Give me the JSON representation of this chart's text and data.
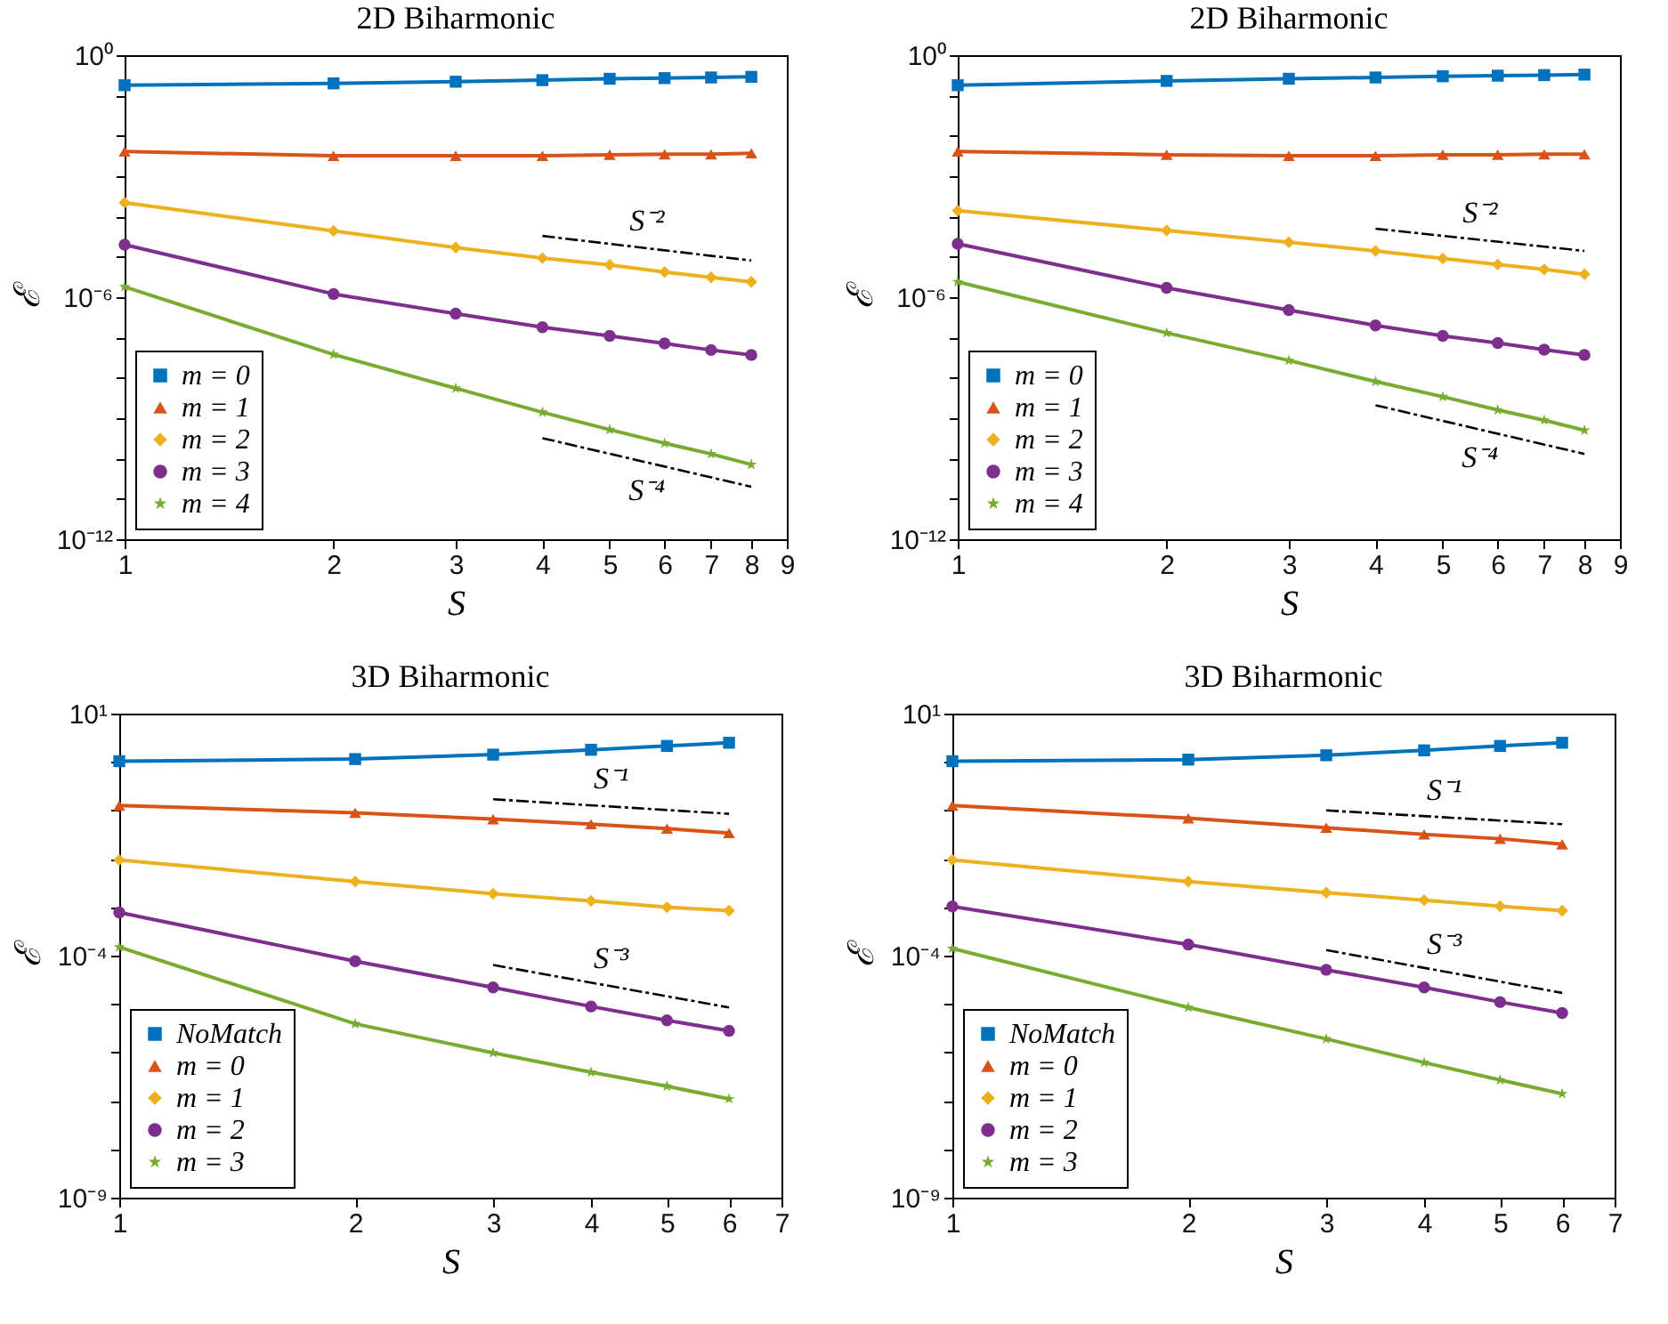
{
  "chart_data": [
    {
      "type": "line",
      "title": "2D Biharmonic",
      "xlabel": "S",
      "ylabel": "ℰ",
      "log": "xy",
      "legend": "bottom left",
      "x": [
        1,
        2,
        3,
        4,
        5,
        6,
        7,
        8
      ],
      "xlim": [
        1,
        9
      ],
      "xticks": [
        1,
        2,
        3,
        4,
        5,
        6,
        7,
        8,
        9
      ],
      "ylim": [
        1e-12,
        1
      ],
      "yticks": [
        {
          "value": 1e-12,
          "label": "10⁻¹²"
        },
        {
          "value": 1e-11,
          "label": null
        },
        {
          "value": 1e-10,
          "label": null
        },
        {
          "value": 1e-09,
          "label": null
        },
        {
          "value": 1e-08,
          "label": null
        },
        {
          "value": 1e-07,
          "label": null
        },
        {
          "value": 1e-06,
          "label": "10⁻⁶"
        },
        {
          "value": 1e-05,
          "label": null
        },
        {
          "value": 0.0001,
          "label": null
        },
        {
          "value": 0.001,
          "label": null
        },
        {
          "value": 0.01,
          "label": null
        },
        {
          "value": 0.1,
          "label": null
        },
        {
          "value": 1,
          "label": "10⁰"
        }
      ],
      "series": [
        {
          "name": "m = 0",
          "color": "#0072bd",
          "marker": "square",
          "values": [
            0.18,
            0.2,
            0.22,
            0.24,
            0.26,
            0.27,
            0.28,
            0.29
          ]
        },
        {
          "name": "m = 1",
          "color": "#d95319",
          "marker": "triangle",
          "values": [
            0.0041,
            0.0032,
            0.0032,
            0.0032,
            0.0034,
            0.0035,
            0.0035,
            0.0037
          ]
        },
        {
          "name": "m = 2",
          "color": "#edb120",
          "marker": "diamond",
          "values": [
            0.00022,
            4.4e-05,
            1.7e-05,
            9.3e-06,
            6.3e-06,
            4.2e-06,
            3.1e-06,
            2.4e-06
          ]
        },
        {
          "name": "m = 3",
          "color": "#7e2f8e",
          "marker": "circle",
          "values": [
            2e-05,
            1.2e-06,
            3.9e-07,
            1.8e-07,
            1.1e-07,
            7.1e-08,
            4.9e-08,
            3.7e-08
          ]
        },
        {
          "name": "m = 4",
          "color": "#77ac30",
          "marker": "star",
          "values": [
            1.8e-06,
            3.8e-08,
            5.5e-09,
            1.4e-09,
            5.2e-10,
            2.4e-10,
            1.3e-10,
            7.1e-11
          ]
        },
        {
          "name": "S⁻²",
          "color": "#000000",
          "marker": "none",
          "line_style": "dashed",
          "x": [
            4,
            8
          ],
          "values": [
            3.3e-05,
            8.1e-06
          ]
        },
        {
          "name": "S⁻⁴",
          "color": "#000000",
          "marker": "none",
          "line_style": "dashed",
          "x": [
            4,
            8
          ],
          "values": [
            3.2e-10,
            2e-11
          ]
        }
      ]
    },
    {
      "type": "line",
      "title": "2D Biharmonic",
      "xlabel": "S",
      "ylabel": "ℰ",
      "log": "xy",
      "legend": "bottom left",
      "x": [
        1,
        2,
        3,
        4,
        5,
        6,
        7,
        8
      ],
      "xlim": [
        1,
        9
      ],
      "xticks": [
        1,
        2,
        3,
        4,
        5,
        6,
        7,
        8,
        9
      ],
      "ylim": [
        1e-12,
        1
      ],
      "yticks": [
        {
          "value": 1e-12,
          "label": "10⁻¹²"
        },
        {
          "value": 1e-11,
          "label": null
        },
        {
          "value": 1e-10,
          "label": null
        },
        {
          "value": 1e-09,
          "label": null
        },
        {
          "value": 1e-08,
          "label": null
        },
        {
          "value": 1e-07,
          "label": null
        },
        {
          "value": 1e-06,
          "label": "10⁻⁶"
        },
        {
          "value": 1e-05,
          "label": null
        },
        {
          "value": 0.0001,
          "label": null
        },
        {
          "value": 0.001,
          "label": null
        },
        {
          "value": 0.01,
          "label": null
        },
        {
          "value": 0.1,
          "label": null
        },
        {
          "value": 1,
          "label": "10⁰"
        }
      ],
      "series": [
        {
          "name": "m = 0",
          "color": "#0072bd",
          "marker": "square",
          "values": [
            0.18,
            0.23,
            0.26,
            0.28,
            0.3,
            0.31,
            0.32,
            0.33
          ]
        },
        {
          "name": "m = 1",
          "color": "#d95319",
          "marker": "triangle",
          "values": [
            0.0041,
            0.0034,
            0.0032,
            0.0032,
            0.0034,
            0.0034,
            0.0035,
            0.0035
          ]
        },
        {
          "name": "m = 2",
          "color": "#edb120",
          "marker": "diamond",
          "values": [
            0.00014,
            4.5e-05,
            2.3e-05,
            1.4e-05,
            9.1e-06,
            6.5e-06,
            4.9e-06,
            3.7e-06
          ]
        },
        {
          "name": "m = 3",
          "color": "#7e2f8e",
          "marker": "circle",
          "values": [
            2.1e-05,
            1.7e-06,
            4.8e-07,
            2e-07,
            1.1e-07,
            7.3e-08,
            5e-08,
            3.7e-08
          ]
        },
        {
          "name": "m = 4",
          "color": "#77ac30",
          "marker": "star",
          "values": [
            2.4e-06,
            1.3e-07,
            2.7e-08,
            8.1e-09,
            3.4e-09,
            1.6e-09,
            8.9e-10,
            5e-10
          ]
        },
        {
          "name": "S⁻²",
          "color": "#000000",
          "marker": "none",
          "line_style": "dashed",
          "x": [
            4,
            8
          ],
          "values": [
            5e-05,
            1.4e-05
          ]
        },
        {
          "name": "S⁻⁴",
          "color": "#000000",
          "marker": "none",
          "line_style": "dashed",
          "x": [
            4,
            8
          ],
          "values": [
            2.1e-09,
            1.3e-10
          ]
        }
      ]
    },
    {
      "type": "line",
      "title": "3D Biharmonic",
      "xlabel": "S",
      "ylabel": "ℰ",
      "log": "xy",
      "legend": "bottom left",
      "x": [
        1,
        2,
        3,
        4,
        5,
        6
      ],
      "xlim": [
        1,
        7
      ],
      "xticks": [
        1,
        2,
        3,
        4,
        5,
        6,
        7
      ],
      "ylim": [
        1e-09,
        10
      ],
      "yticks": [
        {
          "value": 1e-09,
          "label": "10⁻⁹"
        },
        {
          "value": 1e-08,
          "label": null
        },
        {
          "value": 1e-07,
          "label": null
        },
        {
          "value": 1e-06,
          "label": null
        },
        {
          "value": 1e-05,
          "label": null
        },
        {
          "value": 0.0001,
          "label": "10⁻⁴"
        },
        {
          "value": 0.001,
          "label": null
        },
        {
          "value": 0.01,
          "label": null
        },
        {
          "value": 0.1,
          "label": null
        },
        {
          "value": 1,
          "label": null
        },
        {
          "value": 10,
          "label": "10¹"
        }
      ],
      "series": [
        {
          "name": "NoMatch",
          "color": "#0072bd",
          "marker": "square",
          "values": [
            1.04,
            1.15,
            1.42,
            1.79,
            2.15,
            2.5
          ]
        },
        {
          "name": "m = 0",
          "color": "#d95319",
          "marker": "triangle",
          "values": [
            0.126,
            0.089,
            0.066,
            0.052,
            0.042,
            0.034
          ]
        },
        {
          "name": "m = 1",
          "color": "#edb120",
          "marker": "diamond",
          "values": [
            0.0095,
            0.0034,
            0.0019,
            0.00135,
            0.001,
            0.00085
          ]
        },
        {
          "name": "m = 2",
          "color": "#7e2f8e",
          "marker": "circle",
          "values": [
            0.00078,
            7.7e-05,
            2.2e-05,
            8.9e-06,
            4.6e-06,
            2.8e-06
          ]
        },
        {
          "name": "m = 3",
          "color": "#77ac30",
          "marker": "star",
          "values": [
            0.00015,
            3.9e-06,
            9.8e-07,
            3.9e-07,
            2e-07,
            1.1e-07
          ]
        },
        {
          "name": "S⁻¹",
          "color": "#000000",
          "marker": "none",
          "line_style": "dashed",
          "x": [
            3,
            6
          ],
          "values": [
            0.17,
            0.085
          ]
        },
        {
          "name": "S⁻³",
          "color": "#000000",
          "marker": "none",
          "line_style": "dashed",
          "x": [
            3,
            6
          ],
          "values": [
            6.4e-05,
            8.5e-06
          ]
        }
      ]
    },
    {
      "type": "line",
      "title": "3D Biharmonic",
      "xlabel": "S",
      "ylabel": "ℰ",
      "log": "xy",
      "legend": "bottom left",
      "x": [
        1,
        2,
        3,
        4,
        5,
        6
      ],
      "xlim": [
        1,
        7
      ],
      "xticks": [
        1,
        2,
        3,
        4,
        5,
        6,
        7
      ],
      "ylim": [
        1e-09,
        10
      ],
      "yticks": [
        {
          "value": 1e-09,
          "label": "10⁻⁹"
        },
        {
          "value": 1e-08,
          "label": null
        },
        {
          "value": 1e-07,
          "label": null
        },
        {
          "value": 1e-06,
          "label": null
        },
        {
          "value": 1e-05,
          "label": null
        },
        {
          "value": 0.0001,
          "label": "10⁻⁴"
        },
        {
          "value": 0.001,
          "label": null
        },
        {
          "value": 0.01,
          "label": null
        },
        {
          "value": 0.1,
          "label": null
        },
        {
          "value": 1,
          "label": null
        },
        {
          "value": 10,
          "label": "10¹"
        }
      ],
      "series": [
        {
          "name": "NoMatch",
          "color": "#0072bd",
          "marker": "square",
          "values": [
            1.04,
            1.12,
            1.38,
            1.74,
            2.15,
            2.5
          ]
        },
        {
          "name": "m = 0",
          "color": "#d95319",
          "marker": "triangle",
          "values": [
            0.126,
            0.069,
            0.044,
            0.032,
            0.026,
            0.02
          ]
        },
        {
          "name": "m = 1",
          "color": "#edb120",
          "marker": "diamond",
          "values": [
            0.0095,
            0.0034,
            0.002,
            0.0014,
            0.00105,
            0.00085
          ]
        },
        {
          "name": "m = 2",
          "color": "#7e2f8e",
          "marker": "circle",
          "values": [
            0.00104,
            0.00017,
            5.1e-05,
            2.2e-05,
            1.1e-05,
            6.5e-06
          ]
        },
        {
          "name": "m = 3",
          "color": "#77ac30",
          "marker": "star",
          "values": [
            0.00014,
            8.5e-06,
            1.9e-06,
            6.2e-07,
            2.7e-07,
            1.4e-07
          ]
        },
        {
          "name": "S⁻¹",
          "color": "#000000",
          "marker": "none",
          "line_style": "dashed",
          "x": [
            3,
            6
          ],
          "values": [
            0.1,
            0.052
          ]
        },
        {
          "name": "S⁻³",
          "color": "#000000",
          "marker": "none",
          "line_style": "dashed",
          "x": [
            3,
            6
          ],
          "values": [
            0.00013,
            1.7e-05
          ]
        }
      ]
    }
  ]
}
